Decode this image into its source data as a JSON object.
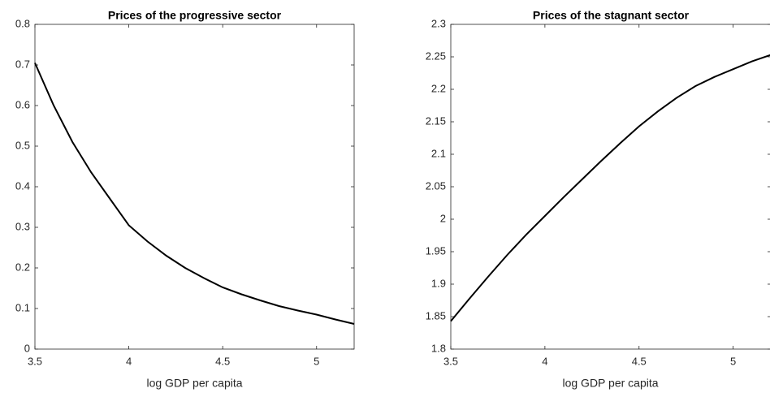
{
  "chart_data": [
    {
      "type": "line",
      "title": "Prices of the progressive sector",
      "xlabel": "log GDP per capita",
      "x": [
        3.5,
        3.6,
        3.7,
        3.8,
        3.9,
        4.0,
        4.1,
        4.2,
        4.3,
        4.4,
        4.5,
        4.6,
        4.7,
        4.8,
        4.9,
        5.0,
        5.1,
        5.2
      ],
      "series": [
        {
          "color": "#000000",
          "values": [
            0.705,
            0.6,
            0.51,
            0.435,
            0.37,
            0.305,
            0.265,
            0.23,
            0.2,
            0.175,
            0.152,
            0.135,
            0.12,
            0.106,
            0.095,
            0.085,
            0.073,
            0.062
          ]
        }
      ],
      "xlim": [
        3.5,
        5.2
      ],
      "xticks": [
        3.5,
        4,
        4.5,
        5
      ],
      "ylim": [
        0,
        0.8
      ],
      "yticks": [
        0,
        0.1,
        0.2,
        0.3,
        0.4,
        0.5,
        0.6,
        0.7,
        0.8
      ]
    },
    {
      "type": "line",
      "title": "Prices of the stagnant sector",
      "xlabel": "log GDP per capita",
      "x": [
        3.5,
        3.6,
        3.7,
        3.8,
        3.9,
        4.0,
        4.1,
        4.2,
        4.3,
        4.4,
        4.5,
        4.6,
        4.7,
        4.8,
        4.9,
        5.0,
        5.1,
        5.2
      ],
      "series": [
        {
          "color": "#000000",
          "values": [
            1.843,
            1.878,
            1.912,
            1.945,
            1.976,
            2.005,
            2.034,
            2.062,
            2.09,
            2.117,
            2.143,
            2.166,
            2.187,
            2.205,
            2.219,
            2.231,
            2.243,
            2.253
          ]
        }
      ],
      "xlim": [
        3.5,
        5.2
      ],
      "xticks": [
        3.5,
        4,
        4.5,
        5
      ],
      "ylim": [
        1.8,
        2.3
      ],
      "yticks": [
        1.8,
        1.85,
        1.9,
        1.95,
        2,
        2.05,
        2.1,
        2.15,
        2.2,
        2.25,
        2.3
      ]
    }
  ]
}
